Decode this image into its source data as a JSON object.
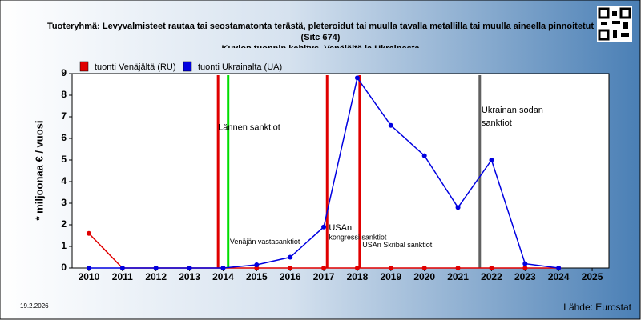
{
  "chart_data": {
    "type": "line",
    "title": "Tuoteryhmä: Levyvalmisteet rautaa tai seostamatonta terästä, pleteroidut tai muulla tavalla metallilla tai muulla aineella pinnoitetut",
    "subtitle": "(Sitc 674)",
    "subtitle2": "Kuvion tuonnin kehitys, Venäjältä ja Ukrainasta",
    "ylabel": "* miljoonaa € / vuosi",
    "x": [
      2010,
      2011,
      2012,
      2013,
      2014,
      2015,
      2016,
      2017,
      2018,
      2019,
      2020,
      2021,
      2022,
      2023,
      2024
    ],
    "xticks": [
      2010,
      2011,
      2012,
      2013,
      2014,
      2015,
      2016,
      2017,
      2018,
      2019,
      2020,
      2021,
      2022,
      2023,
      2024,
      2025
    ],
    "xlim": [
      2009.5,
      2025.5
    ],
    "ylim": [
      0,
      9
    ],
    "yticks": [
      0,
      1,
      2,
      3,
      4,
      5,
      6,
      7,
      8,
      9
    ],
    "series": [
      {
        "name": "tuonti Venäjältä (RU)",
        "color": "#e00000",
        "values": [
          1.6,
          0,
          0,
          0,
          0,
          0,
          0,
          0,
          0,
          0,
          0,
          0,
          0,
          0,
          0
        ]
      },
      {
        "name": "tuonti Ukrainalta (UA)",
        "color": "#0000e0",
        "values": [
          0,
          0,
          0,
          0,
          0,
          0.15,
          0.5,
          1.9,
          8.8,
          6.6,
          5.2,
          2.8,
          5.0,
          0.2,
          0
        ]
      }
    ],
    "vlines": [
      {
        "x": 2013.85,
        "color": "#e00000"
      },
      {
        "x": 2014.15,
        "color": "#00dd00"
      },
      {
        "x": 2017.1,
        "color": "#e00000"
      },
      {
        "x": 2018.07,
        "color": "#e00000"
      },
      {
        "x": 2021.65,
        "color": "#606060"
      }
    ],
    "annotations": [
      {
        "text": "Lännen sanktiot",
        "x": 2013.85,
        "y": 6.5
      },
      {
        "text": "Venäjän vastasanktiot",
        "x": 2014.2,
        "y": 1.2
      },
      {
        "text": "USAn",
        "x": 2017.15,
        "y": 1.85
      },
      {
        "text": "kongressi sanktiot",
        "x": 2017.15,
        "y": 1.4
      },
      {
        "text": "USAn Skribal sanktiot",
        "x": 2018.15,
        "y": 1.05
      },
      {
        "text": "Ukrainan sodan",
        "x": 2021.7,
        "y": 7.3
      },
      {
        "text": "sanktiot",
        "x": 2021.7,
        "y": 6.7
      }
    ],
    "date": "19.2.2026",
    "source": "Lähde: Eurostat"
  }
}
